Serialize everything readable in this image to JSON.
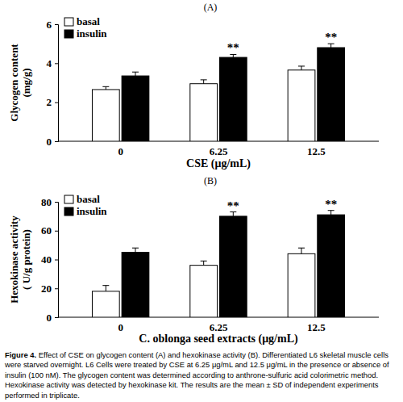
{
  "chart_data": [
    {
      "type": "bar",
      "title": "(A)",
      "ylabel": [
        "Glycogen content",
        "(mg/g)"
      ],
      "xlabel": "CSE (μg/mL)",
      "categories": [
        "0",
        "6.25",
        "12.5"
      ],
      "series": [
        {
          "name": "basal",
          "color": "#ffffff",
          "values": [
            2.65,
            2.95,
            3.65
          ],
          "errors": [
            0.15,
            0.2,
            0.2
          ]
        },
        {
          "name": "insulin",
          "color": "#000000",
          "values": [
            3.35,
            4.3,
            4.8
          ],
          "errors": [
            0.2,
            0.15,
            0.2
          ]
        }
      ],
      "annotations": [
        {
          "text": "**",
          "category": "6.25",
          "series": "insulin"
        },
        {
          "text": "**",
          "category": "12.5",
          "series": "insulin"
        }
      ],
      "ylim": [
        0,
        6
      ],
      "yticks": [
        0,
        2,
        4,
        6
      ],
      "grid": false,
      "legend": "upper left"
    },
    {
      "type": "bar",
      "title": "(B)",
      "ylabel": [
        "Hexokinase activity",
        "( U/g protein)"
      ],
      "xlabel": "C. oblonga seed extracts (μg/mL)",
      "categories": [
        "0",
        "6.25",
        "12.5"
      ],
      "series": [
        {
          "name": "basal",
          "color": "#ffffff",
          "values": [
            18,
            36,
            44
          ],
          "errors": [
            4,
            3,
            4
          ]
        },
        {
          "name": "insulin",
          "color": "#000000",
          "values": [
            45,
            70,
            71
          ],
          "errors": [
            3,
            3,
            3
          ]
        }
      ],
      "annotations": [
        {
          "text": "**",
          "category": "6.25",
          "series": "insulin"
        },
        {
          "text": "**",
          "category": "12.5",
          "series": "insulin"
        }
      ],
      "ylim": [
        0,
        80
      ],
      "yticks": [
        0,
        20,
        40,
        60,
        80
      ],
      "grid": false,
      "legend": "upper left"
    }
  ],
  "caption": {
    "label": "Figure 4.",
    "text": "Effect of CSE on glycogen content (A) and hexokinase activity (B). Differentiated L6 skeletal muscle cells were starved overnight. L6 Cells were treated by CSE at 6.25 μg/mL and 12.5 μg/mL in the presence or absence of insulin (100 nM). The glycogen content was determined according to anthrone-sulfuric acid colorimetric method. Hexokinase activity was detected by hexokinase kit. The results are the mean ± SD of independent experiments performed in triplicate."
  }
}
